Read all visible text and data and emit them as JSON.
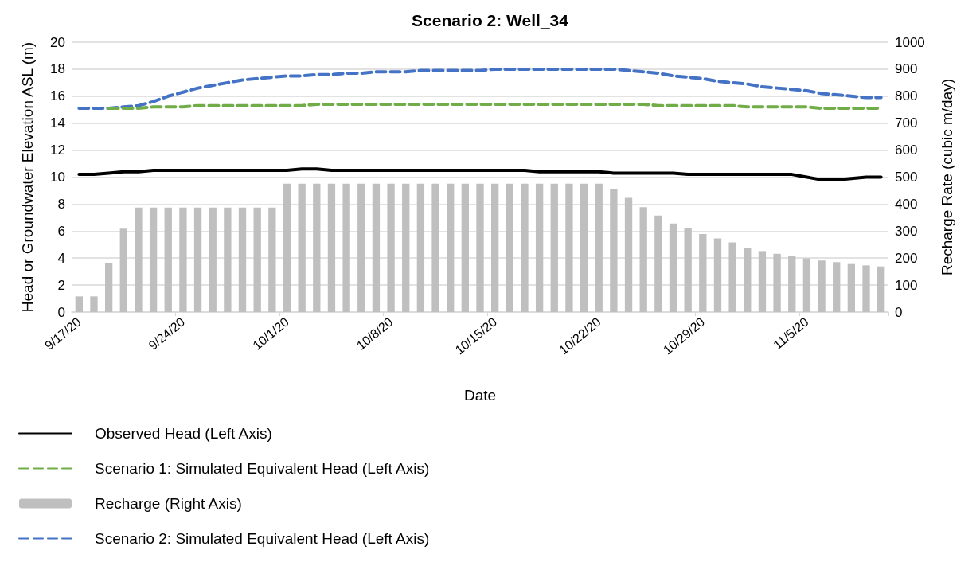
{
  "chart_data": {
    "type": "line",
    "title": "Scenario 2: Well_34",
    "xlabel": "Date",
    "ylabel": "Head or Groundwater Elevation ASL (m)",
    "y2label": "Recharge Rate (cubic m/day)",
    "categories": [
      "9/17/20",
      null,
      null,
      null,
      null,
      null,
      null,
      "9/24/20",
      null,
      null,
      null,
      null,
      null,
      null,
      "10/1/20",
      null,
      null,
      null,
      null,
      null,
      null,
      "10/8/20",
      null,
      null,
      null,
      null,
      null,
      null,
      "10/15/20",
      null,
      null,
      null,
      null,
      null,
      null,
      "10/22/20",
      null,
      null,
      null,
      null,
      null,
      null,
      "10/29/20",
      null,
      null,
      null,
      null,
      null,
      null,
      "11/5/20",
      null,
      null,
      null,
      null,
      null
    ],
    "series": [
      {
        "name": "Observed Head (Left Axis)",
        "color": "#000000",
        "line_style": "solid",
        "values": [
          10.2,
          10.2,
          10.3,
          10.4,
          10.4,
          10.5,
          10.5,
          10.5,
          10.5,
          10.5,
          10.5,
          10.5,
          10.5,
          10.5,
          10.5,
          10.6,
          10.6,
          10.5,
          10.5,
          10.5,
          10.5,
          10.5,
          10.5,
          10.5,
          10.5,
          10.5,
          10.5,
          10.5,
          10.5,
          10.5,
          10.5,
          10.4,
          10.4,
          10.4,
          10.4,
          10.4,
          10.3,
          10.3,
          10.3,
          10.3,
          10.3,
          10.2,
          10.2,
          10.2,
          10.2,
          10.2,
          10.2,
          10.2,
          10.2,
          10.0,
          9.8,
          9.8,
          9.9,
          10.0,
          10.0
        ]
      },
      {
        "name": "Scenario 1: Simulated Equivalent Head (Left Axis)",
        "color": "#70ad47",
        "line_style": "dashed",
        "values": [
          null,
          null,
          15.1,
          15.1,
          15.1,
          15.2,
          15.2,
          15.2,
          15.3,
          15.3,
          15.3,
          15.3,
          15.3,
          15.3,
          15.3,
          15.3,
          15.4,
          15.4,
          15.4,
          15.4,
          15.4,
          15.4,
          15.4,
          15.4,
          15.4,
          15.4,
          15.4,
          15.4,
          15.4,
          15.4,
          15.4,
          15.4,
          15.4,
          15.4,
          15.4,
          15.4,
          15.4,
          15.4,
          15.4,
          15.3,
          15.3,
          15.3,
          15.3,
          15.3,
          15.3,
          15.2,
          15.2,
          15.2,
          15.2,
          15.2,
          15.1,
          15.1,
          15.1,
          15.1,
          15.1
        ]
      },
      {
        "name": "Recharge (Right Axis)",
        "type": "bar",
        "axis": "y2",
        "color": "#bfbfbf",
        "values": [
          58,
          58,
          181,
          309,
          387,
          387,
          387,
          387,
          387,
          387,
          387,
          387,
          387,
          387,
          476,
          476,
          476,
          476,
          476,
          476,
          476,
          476,
          476,
          476,
          476,
          476,
          476,
          476,
          476,
          476,
          476,
          476,
          476,
          476,
          476,
          476,
          457,
          423,
          389,
          358,
          328,
          310,
          289,
          273,
          258,
          238,
          226,
          216,
          207,
          199,
          191,
          185,
          178,
          173,
          169
        ]
      },
      {
        "name": "Scenario 2: Simulated Equivalent Head (Left Axis)",
        "color": "#4472c4",
        "line_style": "dashed",
        "values": [
          15.1,
          15.1,
          15.1,
          15.2,
          15.3,
          15.6,
          16.0,
          16.3,
          16.6,
          16.8,
          17.0,
          17.2,
          17.3,
          17.4,
          17.5,
          17.5,
          17.6,
          17.6,
          17.7,
          17.7,
          17.8,
          17.8,
          17.8,
          17.9,
          17.9,
          17.9,
          17.9,
          17.9,
          18.0,
          18.0,
          18.0,
          18.0,
          18.0,
          18.0,
          18.0,
          18.0,
          18.0,
          17.9,
          17.8,
          17.7,
          17.5,
          17.4,
          17.3,
          17.1,
          17.0,
          16.9,
          16.7,
          16.6,
          16.5,
          16.4,
          16.2,
          16.1,
          16.0,
          15.9,
          15.9
        ]
      }
    ],
    "ylim": [
      0,
      20
    ],
    "yticks": [
      0,
      2,
      4,
      6,
      8,
      10,
      12,
      14,
      16,
      18,
      20
    ],
    "y2lim": [
      0,
      1000
    ],
    "y2ticks": [
      0,
      100,
      200,
      300,
      400,
      500,
      600,
      700,
      800,
      900,
      1000
    ],
    "grid": "y",
    "legend": "bottom",
    "marker": "none"
  }
}
